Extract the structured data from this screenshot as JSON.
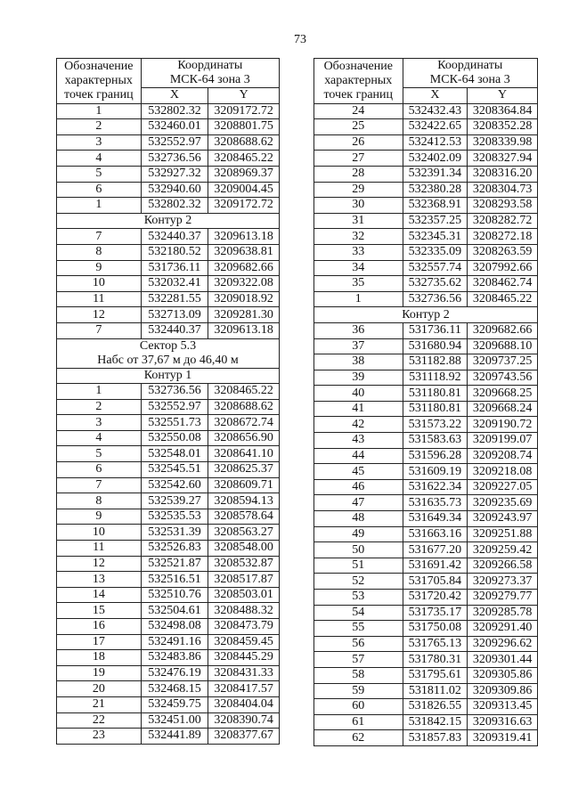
{
  "page_number": "73",
  "header": {
    "col_point": [
      "Обозначение",
      "характерных",
      "точек границ"
    ],
    "coords_title": [
      "Координаты",
      "МСК-64 зона 3"
    ],
    "x": "X",
    "y": "Y"
  },
  "left_table": [
    {
      "p": "1",
      "x": "532802.32",
      "y": "3209172.72"
    },
    {
      "p": "2",
      "x": "532460.01",
      "y": "3208801.75"
    },
    {
      "p": "3",
      "x": "532552.97",
      "y": "3208688.62"
    },
    {
      "p": "4",
      "x": "532736.56",
      "y": "3208465.22"
    },
    {
      "p": "5",
      "x": "532927.32",
      "y": "3208969.37"
    },
    {
      "p": "6",
      "x": "532940.60",
      "y": "3209004.45"
    },
    {
      "p": "1",
      "x": "532802.32",
      "y": "3209172.72"
    },
    {
      "section": [
        "Контур 2"
      ]
    },
    {
      "p": "7",
      "x": "532440.37",
      "y": "3209613.18"
    },
    {
      "p": "8",
      "x": "532180.52",
      "y": "3209638.81"
    },
    {
      "p": "9",
      "x": "531736.11",
      "y": "3209682.66"
    },
    {
      "p": "10",
      "x": "532032.41",
      "y": "3209322.08"
    },
    {
      "p": "11",
      "x": "532281.55",
      "y": "3209018.92"
    },
    {
      "p": "12",
      "x": "532713.09",
      "y": "3209281.30"
    },
    {
      "p": "7",
      "x": "532440.37",
      "y": "3209613.18"
    },
    {
      "section": [
        "Сектор 5.3",
        "Набс от 37,67 м до 46,40 м"
      ]
    },
    {
      "section": [
        "Контур 1"
      ]
    },
    {
      "p": "1",
      "x": "532736.56",
      "y": "3208465.22"
    },
    {
      "p": "2",
      "x": "532552.97",
      "y": "3208688.62"
    },
    {
      "p": "3",
      "x": "532551.73",
      "y": "3208672.74"
    },
    {
      "p": "4",
      "x": "532550.08",
      "y": "3208656.90"
    },
    {
      "p": "5",
      "x": "532548.01",
      "y": "3208641.10"
    },
    {
      "p": "6",
      "x": "532545.51",
      "y": "3208625.37"
    },
    {
      "p": "7",
      "x": "532542.60",
      "y": "3208609.71"
    },
    {
      "p": "8",
      "x": "532539.27",
      "y": "3208594.13"
    },
    {
      "p": "9",
      "x": "532535.53",
      "y": "3208578.64"
    },
    {
      "p": "10",
      "x": "532531.39",
      "y": "3208563.27"
    },
    {
      "p": "11",
      "x": "532526.83",
      "y": "3208548.00"
    },
    {
      "p": "12",
      "x": "532521.87",
      "y": "3208532.87"
    },
    {
      "p": "13",
      "x": "532516.51",
      "y": "3208517.87"
    },
    {
      "p": "14",
      "x": "532510.76",
      "y": "3208503.01"
    },
    {
      "p": "15",
      "x": "532504.61",
      "y": "3208488.32"
    },
    {
      "p": "16",
      "x": "532498.08",
      "y": "3208473.79"
    },
    {
      "p": "17",
      "x": "532491.16",
      "y": "3208459.45"
    },
    {
      "p": "18",
      "x": "532483.86",
      "y": "3208445.29"
    },
    {
      "p": "19",
      "x": "532476.19",
      "y": "3208431.33"
    },
    {
      "p": "20",
      "x": "532468.15",
      "y": "3208417.57"
    },
    {
      "p": "21",
      "x": "532459.75",
      "y": "3208404.04"
    },
    {
      "p": "22",
      "x": "532451.00",
      "y": "3208390.74"
    },
    {
      "p": "23",
      "x": "532441.89",
      "y": "3208377.67"
    }
  ],
  "right_table": [
    {
      "p": "24",
      "x": "532432.43",
      "y": "3208364.84"
    },
    {
      "p": "25",
      "x": "532422.65",
      "y": "3208352.28"
    },
    {
      "p": "26",
      "x": "532412.53",
      "y": "3208339.98"
    },
    {
      "p": "27",
      "x": "532402.09",
      "y": "3208327.94"
    },
    {
      "p": "28",
      "x": "532391.34",
      "y": "3208316.20"
    },
    {
      "p": "29",
      "x": "532380.28",
      "y": "3208304.73"
    },
    {
      "p": "30",
      "x": "532368.91",
      "y": "3208293.58"
    },
    {
      "p": "31",
      "x": "532357.25",
      "y": "3208282.72"
    },
    {
      "p": "32",
      "x": "532345.31",
      "y": "3208272.18"
    },
    {
      "p": "33",
      "x": "532335.09",
      "y": "3208263.59"
    },
    {
      "p": "34",
      "x": "532557.74",
      "y": "3207992.66"
    },
    {
      "p": "35",
      "x": "532735.62",
      "y": "3208462.74"
    },
    {
      "p": "1",
      "x": "532736.56",
      "y": "3208465.22"
    },
    {
      "section": [
        "Контур 2"
      ]
    },
    {
      "p": "36",
      "x": "531736.11",
      "y": "3209682.66"
    },
    {
      "p": "37",
      "x": "531680.94",
      "y": "3209688.10"
    },
    {
      "p": "38",
      "x": "531182.88",
      "y": "3209737.25"
    },
    {
      "p": "39",
      "x": "531118.92",
      "y": "3209743.56"
    },
    {
      "p": "40",
      "x": "531180.81",
      "y": "3209668.25"
    },
    {
      "p": "41",
      "x": "531180.81",
      "y": "3209668.24"
    },
    {
      "p": "42",
      "x": "531573.22",
      "y": "3209190.72"
    },
    {
      "p": "43",
      "x": "531583.63",
      "y": "3209199.07"
    },
    {
      "p": "44",
      "x": "531596.28",
      "y": "3209208.74"
    },
    {
      "p": "45",
      "x": "531609.19",
      "y": "3209218.08"
    },
    {
      "p": "46",
      "x": "531622.34",
      "y": "3209227.05"
    },
    {
      "p": "47",
      "x": "531635.73",
      "y": "3209235.69"
    },
    {
      "p": "48",
      "x": "531649.34",
      "y": "3209243.97"
    },
    {
      "p": "49",
      "x": "531663.16",
      "y": "3209251.88"
    },
    {
      "p": "50",
      "x": "531677.20",
      "y": "3209259.42"
    },
    {
      "p": "51",
      "x": "531691.42",
      "y": "3209266.58"
    },
    {
      "p": "52",
      "x": "531705.84",
      "y": "3209273.37"
    },
    {
      "p": "53",
      "x": "531720.42",
      "y": "3209279.77"
    },
    {
      "p": "54",
      "x": "531735.17",
      "y": "3209285.78"
    },
    {
      "p": "55",
      "x": "531750.08",
      "y": "3209291.40"
    },
    {
      "p": "56",
      "x": "531765.13",
      "y": "3209296.62"
    },
    {
      "p": "57",
      "x": "531780.31",
      "y": "3209301.44"
    },
    {
      "p": "58",
      "x": "531795.61",
      "y": "3209305.86"
    },
    {
      "p": "59",
      "x": "531811.02",
      "y": "3209309.86"
    },
    {
      "p": "60",
      "x": "531826.55",
      "y": "3209313.45"
    },
    {
      "p": "61",
      "x": "531842.15",
      "y": "3209316.63"
    },
    {
      "p": "62",
      "x": "531857.83",
      "y": "3209319.41"
    }
  ]
}
